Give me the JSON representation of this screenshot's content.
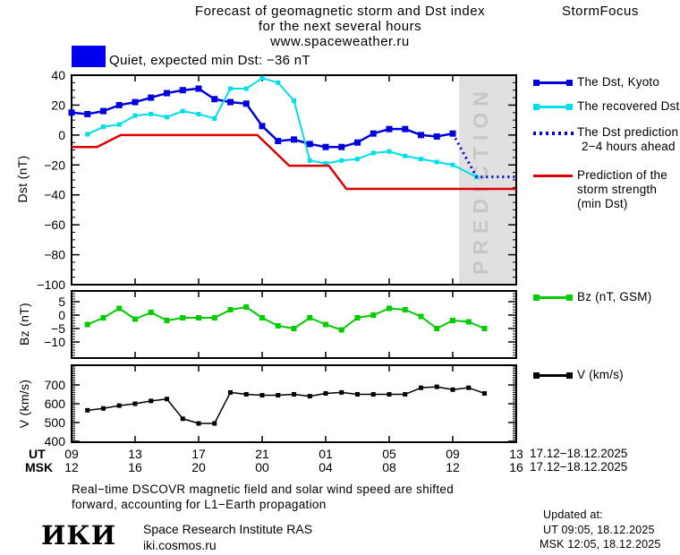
{
  "header": {
    "title_line1": "Forecast of geomagnetic storm and Dst index",
    "title_line2": "for the next several hours",
    "title_line3": "www.spaceweather.ru",
    "brand": "StormFocus"
  },
  "status": {
    "label": "Quiet, expected min Dst: −36 nT",
    "swatch_color": "#0000ee"
  },
  "prediction_band_label": "PREDICTION",
  "colors": {
    "kyoto_blue": "#0000dd",
    "recovered_cyan": "#00dfe8",
    "prediction_red": "#dd0000",
    "bz_green": "#00cc00",
    "v_black": "#000000",
    "band_gray": "#e0e0e0",
    "band_text_gray": "#c6c6c6"
  },
  "legend_main": {
    "kyoto": {
      "label": "The Dst, Kyoto",
      "color": "#0000dd"
    },
    "recovered": {
      "label": "The recovered Dst",
      "color": "#00dfe8"
    },
    "prediction": {
      "line1": "The Dst prediction",
      "line2": "2−4 hours ahead",
      "color": "#0000dd"
    },
    "strength": {
      "line1": "Prediction of the",
      "line2": "storm strength",
      "line3": "(min Dst)",
      "color": "#dd0000"
    }
  },
  "legend_bz": {
    "label": "Bz (nT, GSM)",
    "color": "#00cc00"
  },
  "legend_v": {
    "label": "V (km/s)",
    "color": "#000000"
  },
  "xaxis": {
    "ut_label": "UT",
    "msk_label": "MSK",
    "ut_ticks": [
      "09",
      "13",
      "17",
      "21",
      "01",
      "05",
      "09",
      "13"
    ],
    "msk_ticks": [
      "12",
      "16",
      "20",
      "00",
      "04",
      "08",
      "12",
      "16"
    ],
    "ut_date": "17.12−18.12.2025",
    "msk_date": "17.12−18.12.2025"
  },
  "footer": {
    "note_line1": "Real−time DSCOVR magnetic field and solar wind speed are shifted",
    "note_line2": "forward, accounting for L1−Earth propagation",
    "logo": "ИКИ",
    "institute": "Space Research Institute RAS",
    "site": "iki.cosmos.ru",
    "updated_label": "Updated at:",
    "updated_ut": "UT  09:05, 18.12.2025",
    "updated_msk": "MSK 12:05, 18.12.2025"
  },
  "chart_data": [
    {
      "type": "line",
      "ylabel": "Dst (nT)",
      "ylim": [
        -100,
        40
      ],
      "yticks": [
        40,
        20,
        0,
        -20,
        -40,
        -60,
        -80,
        -100
      ],
      "yminor": 5,
      "xticks_hours": [
        0,
        4,
        8,
        12,
        16,
        20,
        24,
        28
      ],
      "prediction_band_x": [
        24.4,
        28
      ],
      "series": [
        {
          "name": "The Dst, Kyoto",
          "color": "#0000dd",
          "line_width": 2.5,
          "marker_size": 7,
          "x": [
            0,
            1,
            2,
            3,
            4,
            5,
            6,
            7,
            8,
            9,
            10,
            11,
            12,
            13,
            14,
            15,
            16,
            17,
            18,
            19,
            20,
            21,
            22,
            23,
            24
          ],
          "values": [
            15,
            14,
            16,
            20,
            22,
            25,
            28,
            30,
            31,
            24,
            22,
            21,
            6,
            -4,
            -3,
            -6,
            -8,
            -8,
            -5,
            1,
            4,
            4,
            0,
            -1,
            1
          ]
        },
        {
          "name": "The recovered Dst",
          "color": "#00dfe8",
          "line_width": 2,
          "marker_size": 5,
          "x": [
            1,
            2,
            3,
            4,
            5,
            6,
            7,
            8,
            9,
            10,
            11,
            12,
            13,
            14,
            15,
            16,
            17,
            18,
            19,
            20,
            21,
            22,
            23,
            24,
            25.5
          ],
          "values": [
            0.5,
            5.5,
            7,
            13,
            14,
            12,
            16,
            14,
            11,
            31,
            31,
            38,
            35,
            23,
            -17,
            -19,
            -17,
            -16,
            -12,
            -11,
            -14,
            -16,
            -18,
            -20,
            -28
          ]
        },
        {
          "name": "The Dst prediction 2−4 hours ahead",
          "color": "#0000dd",
          "line_width": 3,
          "marker_size": 0,
          "dash": "2 4",
          "x": [
            24,
            25.5,
            27.9
          ],
          "values": [
            1,
            -28,
            -28
          ]
        },
        {
          "name": "Prediction of the storm strength (min Dst)",
          "color": "#dd0000",
          "line_width": 2.5,
          "marker_size": 0,
          "x": [
            0,
            1.6,
            3.1,
            11.7,
            13.7,
            16.2,
            17.3,
            28
          ],
          "values": [
            -8,
            -8,
            0,
            0,
            -20.5,
            -20.5,
            -36,
            -36
          ]
        }
      ]
    },
    {
      "type": "line",
      "ylabel": "Bz (nT)",
      "ylim": [
        -16,
        9
      ],
      "yticks": [
        5,
        0,
        -5,
        -10
      ],
      "yminor": 1,
      "xticks_hours": [
        0,
        4,
        8,
        12,
        16,
        20,
        24,
        28
      ],
      "series": [
        {
          "name": "Bz (nT, GSM)",
          "color": "#00cc00",
          "line_width": 2,
          "marker_size": 6,
          "x": [
            1,
            2,
            3,
            4,
            5,
            6,
            7,
            8,
            9,
            10,
            11,
            12,
            13,
            14,
            15,
            16,
            17,
            18,
            19,
            20,
            21,
            22,
            23,
            24,
            25,
            26
          ],
          "values": [
            -3.5,
            -1,
            2.5,
            -1.5,
            1,
            -2,
            -1,
            -1,
            -1,
            2,
            3,
            -1,
            -4,
            -5,
            -1,
            -3.5,
            -5.5,
            -1,
            0,
            2.5,
            2,
            -0.5,
            -5,
            -2,
            -2.5,
            -5
          ]
        }
      ]
    },
    {
      "type": "line",
      "ylabel": "V (km/s)",
      "ylim": [
        395,
        805
      ],
      "yticks": [
        700,
        600,
        500,
        400
      ],
      "yminor": 10,
      "xticks_hours": [
        0,
        4,
        8,
        12,
        16,
        20,
        24,
        28
      ],
      "series": [
        {
          "name": "V (km/s)",
          "color": "#000000",
          "line_width": 1.5,
          "marker_size": 5,
          "x": [
            1,
            2,
            3,
            4,
            5,
            6,
            7,
            8,
            9,
            10,
            11,
            12,
            13,
            14,
            15,
            16,
            17,
            18,
            19,
            20,
            21,
            22,
            23,
            24,
            25,
            26
          ],
          "values": [
            565,
            575,
            590,
            600,
            615,
            625,
            520,
            495,
            495,
            660,
            650,
            645,
            645,
            650,
            640,
            655,
            660,
            650,
            650,
            650,
            650,
            685,
            690,
            675,
            685,
            655
          ]
        }
      ]
    }
  ]
}
